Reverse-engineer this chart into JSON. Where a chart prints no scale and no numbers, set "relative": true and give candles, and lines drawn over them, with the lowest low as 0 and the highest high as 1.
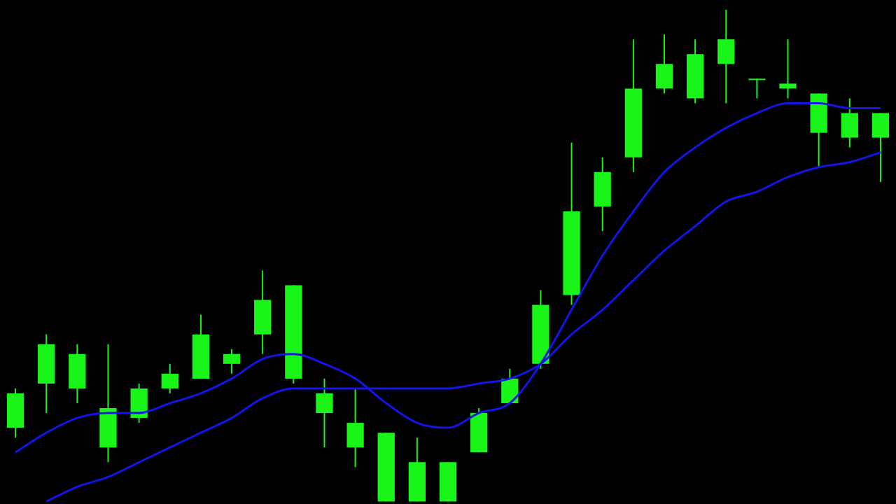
{
  "chart_data": {
    "type": "candlestick",
    "relative": true,
    "color": "#19f519",
    "categories": [
      null,
      null,
      null,
      null,
      null,
      null,
      null,
      null,
      null,
      null,
      null,
      null,
      null,
      null,
      null,
      null,
      null,
      null,
      null,
      null,
      null,
      null,
      null,
      null,
      null,
      null,
      null,
      null,
      null
    ],
    "ohlc": [
      [
        0.15,
        0.23,
        0.13,
        0.22
      ],
      [
        0.24,
        0.34,
        0.18,
        0.32
      ],
      [
        0.23,
        0.32,
        0.2,
        0.3
      ],
      [
        0.11,
        0.32,
        0.08,
        0.19
      ],
      [
        0.17,
        0.24,
        0.16,
        0.23
      ],
      [
        0.23,
        0.28,
        0.22,
        0.26
      ],
      [
        0.25,
        0.38,
        0.25,
        0.34
      ],
      [
        0.28,
        0.31,
        0.26,
        0.3
      ],
      [
        0.34,
        0.47,
        0.3,
        0.41
      ],
      [
        0.25,
        0.44,
        0.24,
        0.44
      ],
      [
        0.18,
        0.25,
        0.11,
        0.22
      ],
      [
        0.11,
        0.23,
        0.07,
        0.16
      ],
      [
        0,
        0.14,
        0,
        0.14
      ],
      [
        0,
        0.13,
        0,
        0.08
      ],
      [
        0,
        0.08,
        0,
        0.08
      ],
      [
        0.1,
        0.19,
        0.1,
        0.18
      ],
      [
        0.2,
        0.27,
        0.2,
        0.25
      ],
      [
        0.28,
        0.43,
        0.27,
        0.4
      ],
      [
        0.42,
        0.73,
        0.4,
        0.59
      ],
      [
        0.6,
        0.7,
        0.55,
        0.67
      ],
      [
        0.7,
        0.94,
        0.67,
        0.84
      ],
      [
        0.84,
        0.95,
        0.83,
        0.89
      ],
      [
        0.82,
        0.94,
        0.81,
        0.91
      ],
      [
        0.89,
        1,
        0.81,
        0.94
      ],
      [
        0.86,
        0.86,
        0.82,
        0.86
      ],
      [
        0.84,
        0.94,
        0.82,
        0.85
      ],
      [
        0.75,
        0.83,
        0.68,
        0.83
      ],
      [
        0.74,
        0.82,
        0.72,
        0.79
      ],
      [
        0.74,
        0.79,
        0.65,
        0.79
      ]
    ],
    "series": [
      {
        "type": "line",
        "color": "#1414e6",
        "values": [
          0.1,
          0.14,
          0.17,
          0.18,
          0.18,
          0.2,
          0.22,
          0.25,
          0.29,
          0.3,
          0.28,
          0.25,
          0.2,
          0.16,
          0.15,
          0.18,
          0.2,
          0.28,
          0.39,
          0.5,
          0.59,
          0.67,
          0.72,
          0.76,
          0.79,
          0.81,
          0.81,
          0.8,
          0.8
        ]
      },
      {
        "type": "line",
        "color": "#1414e6",
        "values": [
          null,
          0.0,
          0.03,
          0.05,
          0.08,
          0.11,
          0.14,
          0.17,
          0.21,
          0.23,
          0.23,
          0.23,
          0.23,
          0.23,
          0.23,
          0.24,
          0.25,
          0.28,
          0.34,
          0.39,
          0.45,
          0.51,
          0.56,
          0.61,
          0.63,
          0.66,
          0.68,
          0.69,
          0.71
        ]
      }
    ],
    "grid": false,
    "legend": false
  }
}
